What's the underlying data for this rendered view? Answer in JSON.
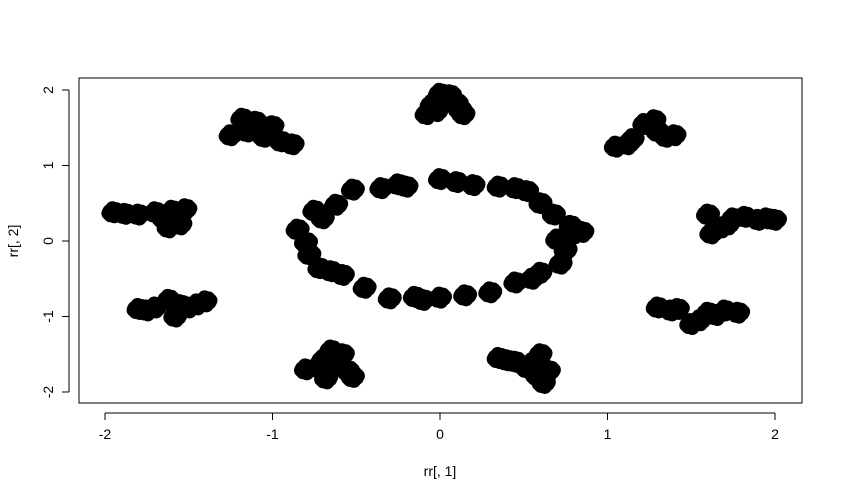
{
  "chart_data": {
    "type": "scatter",
    "title": "",
    "xlabel": "rr[, 1]",
    "ylabel": "rr[, 2]",
    "xlim": [
      -2.2,
      2.2
    ],
    "ylim": [
      -2.2,
      2.2
    ],
    "x_ticks": [
      -2,
      -1,
      0,
      1,
      2
    ],
    "y_ticks": [
      -2,
      -1,
      0,
      1,
      2
    ],
    "x_tick_labels": [
      "-2",
      "-1",
      "0",
      "1",
      "2"
    ],
    "y_tick_labels": [
      "-2",
      "-1",
      "0",
      "1",
      "2"
    ],
    "grid": false,
    "legend": "none",
    "marker": "open-circle",
    "point_color": "#000000",
    "series": [
      {
        "values": [
          {
            "x": 0.0,
            "y": 1.95
          },
          {
            "x": 0.06,
            "y": 1.93
          },
          {
            "x": -0.05,
            "y": 1.8
          },
          {
            "x": -0.08,
            "y": 1.68
          },
          {
            "x": 0.1,
            "y": 1.82
          },
          {
            "x": 0.14,
            "y": 1.68
          },
          {
            "x": 0.02,
            "y": 1.88
          },
          {
            "x": -0.02,
            "y": 1.72
          },
          {
            "x": 0.12,
            "y": 1.74
          },
          {
            "x": -1.25,
            "y": 1.4
          },
          {
            "x": -1.1,
            "y": 1.58
          },
          {
            "x": -1.0,
            "y": 1.52
          },
          {
            "x": -1.05,
            "y": 1.38
          },
          {
            "x": -0.95,
            "y": 1.32
          },
          {
            "x": -1.15,
            "y": 1.45
          },
          {
            "x": -0.88,
            "y": 1.28
          },
          {
            "x": -1.18,
            "y": 1.62
          },
          {
            "x": 1.05,
            "y": 1.25
          },
          {
            "x": 1.15,
            "y": 1.35
          },
          {
            "x": 1.22,
            "y": 1.55
          },
          {
            "x": 1.3,
            "y": 1.45
          },
          {
            "x": 1.4,
            "y": 1.4
          },
          {
            "x": 1.28,
            "y": 1.6
          },
          {
            "x": 1.12,
            "y": 1.28
          },
          {
            "x": 1.35,
            "y": 1.38
          },
          {
            "x": -1.95,
            "y": 0.38
          },
          {
            "x": -1.8,
            "y": 0.35
          },
          {
            "x": -1.65,
            "y": 0.3
          },
          {
            "x": -1.55,
            "y": 0.22
          },
          {
            "x": -1.6,
            "y": 0.4
          },
          {
            "x": -1.7,
            "y": 0.38
          },
          {
            "x": -1.52,
            "y": 0.42
          },
          {
            "x": -1.88,
            "y": 0.36
          },
          {
            "x": -1.62,
            "y": 0.18
          },
          {
            "x": 1.6,
            "y": 0.35
          },
          {
            "x": 1.75,
            "y": 0.3
          },
          {
            "x": 1.9,
            "y": 0.28
          },
          {
            "x": 2.0,
            "y": 0.28
          },
          {
            "x": 1.68,
            "y": 0.18
          },
          {
            "x": 1.62,
            "y": 0.1
          },
          {
            "x": 1.82,
            "y": 0.32
          },
          {
            "x": 1.95,
            "y": 0.3
          },
          {
            "x": 1.72,
            "y": 0.22
          },
          {
            "x": -1.8,
            "y": -0.9
          },
          {
            "x": -1.7,
            "y": -0.88
          },
          {
            "x": -1.62,
            "y": -0.78
          },
          {
            "x": -1.58,
            "y": -1.0
          },
          {
            "x": -1.5,
            "y": -0.88
          },
          {
            "x": -1.4,
            "y": -0.8
          },
          {
            "x": -1.75,
            "y": -0.92
          },
          {
            "x": -1.55,
            "y": -0.85
          },
          {
            "x": -1.45,
            "y": -0.84
          },
          {
            "x": 1.3,
            "y": -0.88
          },
          {
            "x": 1.42,
            "y": -0.9
          },
          {
            "x": 1.5,
            "y": -1.1
          },
          {
            "x": 1.6,
            "y": -0.95
          },
          {
            "x": 1.7,
            "y": -0.92
          },
          {
            "x": 1.78,
            "y": -0.95
          },
          {
            "x": 1.55,
            "y": -1.05
          },
          {
            "x": 1.38,
            "y": -0.92
          },
          {
            "x": 1.65,
            "y": -0.98
          },
          {
            "x": -0.8,
            "y": -1.7
          },
          {
            "x": -0.7,
            "y": -1.58
          },
          {
            "x": -0.65,
            "y": -1.45
          },
          {
            "x": -0.58,
            "y": -1.5
          },
          {
            "x": -0.68,
            "y": -1.82
          },
          {
            "x": -0.55,
            "y": -1.72
          },
          {
            "x": -0.72,
            "y": -1.68
          },
          {
            "x": -0.62,
            "y": -1.62
          },
          {
            "x": -0.52,
            "y": -1.8
          },
          {
            "x": 0.35,
            "y": -1.55
          },
          {
            "x": 0.45,
            "y": -1.6
          },
          {
            "x": 0.52,
            "y": -1.68
          },
          {
            "x": 0.58,
            "y": -1.78
          },
          {
            "x": 0.6,
            "y": -1.5
          },
          {
            "x": 0.62,
            "y": -1.88
          },
          {
            "x": 0.55,
            "y": -1.62
          },
          {
            "x": 0.4,
            "y": -1.58
          },
          {
            "x": 0.65,
            "y": -1.72
          },
          {
            "x": -0.52,
            "y": 0.68
          },
          {
            "x": -0.35,
            "y": 0.7
          },
          {
            "x": -0.2,
            "y": 0.72
          },
          {
            "x": 0.0,
            "y": 0.82
          },
          {
            "x": 0.2,
            "y": 0.74
          },
          {
            "x": 0.35,
            "y": 0.72
          },
          {
            "x": 0.52,
            "y": 0.66
          },
          {
            "x": 0.6,
            "y": 0.5
          },
          {
            "x": 0.68,
            "y": 0.35
          },
          {
            "x": 0.78,
            "y": 0.2
          },
          {
            "x": 0.85,
            "y": 0.12
          },
          {
            "x": 0.7,
            "y": 0.02
          },
          {
            "x": 0.75,
            "y": -0.12
          },
          {
            "x": 0.72,
            "y": -0.3
          },
          {
            "x": 0.6,
            "y": -0.42
          },
          {
            "x": 0.45,
            "y": -0.55
          },
          {
            "x": 0.3,
            "y": -0.68
          },
          {
            "x": 0.15,
            "y": -0.72
          },
          {
            "x": 0.0,
            "y": -0.75
          },
          {
            "x": -0.15,
            "y": -0.74
          },
          {
            "x": -0.3,
            "y": -0.76
          },
          {
            "x": -0.45,
            "y": -0.62
          },
          {
            "x": -0.58,
            "y": -0.45
          },
          {
            "x": -0.72,
            "y": -0.36
          },
          {
            "x": -0.78,
            "y": -0.18
          },
          {
            "x": -0.8,
            "y": -0.02
          },
          {
            "x": -0.85,
            "y": 0.15
          },
          {
            "x": -0.7,
            "y": 0.3
          },
          {
            "x": -0.62,
            "y": 0.48
          },
          {
            "x": -0.25,
            "y": 0.75
          },
          {
            "x": 0.1,
            "y": 0.78
          },
          {
            "x": 0.45,
            "y": 0.7
          },
          {
            "x": 0.8,
            "y": 0.1
          },
          {
            "x": 0.55,
            "y": -0.5
          },
          {
            "x": -0.1,
            "y": -0.78
          },
          {
            "x": -0.65,
            "y": -0.4
          },
          {
            "x": -0.75,
            "y": 0.4
          }
        ]
      }
    ]
  }
}
